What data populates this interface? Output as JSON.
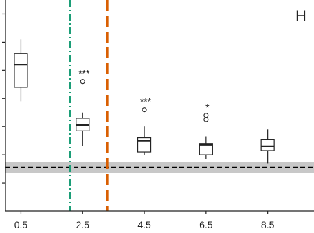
{
  "chart_data": {
    "type": "boxplot",
    "panel_label": "H",
    "x_tick_labels": [
      "0.5",
      "2.5",
      "4.5",
      "6.5",
      "8.5"
    ],
    "x_ticks": [
      0.5,
      2.5,
      4.5,
      6.5,
      8.5
    ],
    "xlim": [
      0,
      10
    ],
    "ylim": [
      0,
      7.5
    ],
    "grid": false,
    "y_tick_labels_visible": false,
    "boxes": [
      {
        "x": 0.5,
        "whisker_low": 3.9,
        "q1": 4.4,
        "median": 5.2,
        "q3": 5.6,
        "whisker_high": 6.1,
        "outliers": [],
        "significance": ""
      },
      {
        "x": 2.5,
        "whisker_low": 2.3,
        "q1": 2.85,
        "median": 3.05,
        "q3": 3.3,
        "whisker_high": 3.5,
        "outliers": [
          4.6
        ],
        "significance": "***"
      },
      {
        "x": 4.5,
        "whisker_low": 2.0,
        "q1": 2.1,
        "median": 2.5,
        "q3": 2.6,
        "whisker_high": 3.0,
        "outliers": [
          3.6
        ],
        "significance": "***"
      },
      {
        "x": 6.5,
        "whisker_low": 1.85,
        "q1": 2.0,
        "median": 2.35,
        "q3": 2.4,
        "whisker_high": 2.65,
        "outliers": [
          3.4,
          3.25
        ],
        "significance": "*"
      },
      {
        "x": 8.5,
        "whisker_low": 1.7,
        "q1": 2.15,
        "median": 2.3,
        "q3": 2.55,
        "whisker_high": 2.9,
        "outliers": [],
        "significance": ""
      }
    ],
    "reference_line": {
      "y": 1.55,
      "band": [
        1.35,
        1.75
      ],
      "style": "dashed",
      "color": "#000000",
      "band_color": "#c8c8c8"
    },
    "vertical_lines": [
      {
        "x": 2.1,
        "style": "dash-dot",
        "color": "#1b9e77"
      },
      {
        "x": 3.3,
        "style": "dashed",
        "color": "#d95f02"
      }
    ]
  }
}
